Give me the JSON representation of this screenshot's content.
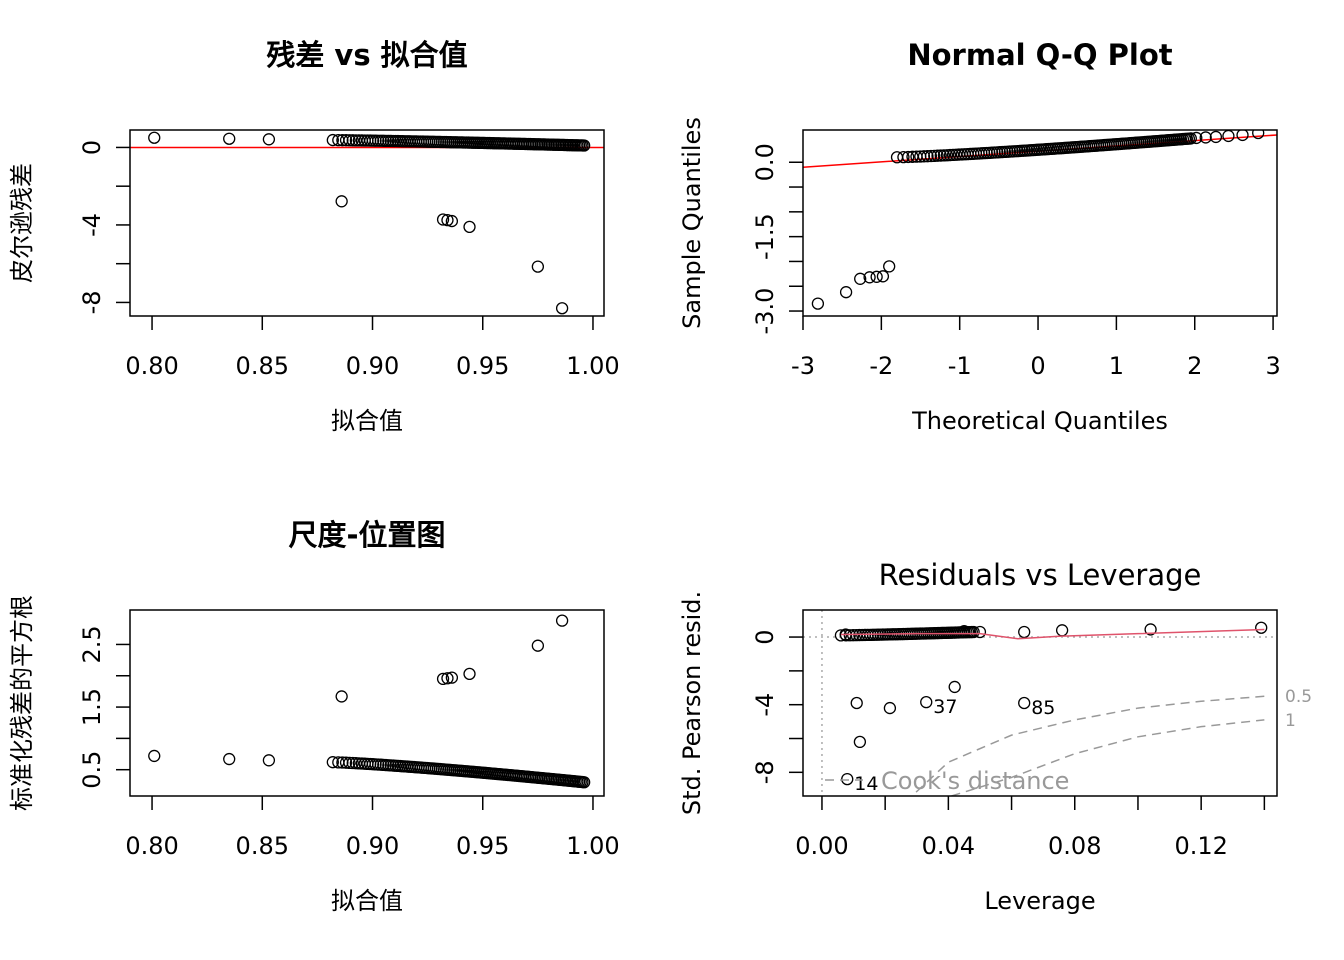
{
  "chart_data": [
    {
      "id": "p1",
      "type": "scatter",
      "title": "残差 vs 拟合值",
      "xlabel": "拟合值",
      "ylabel": "皮尔逊残差",
      "xlim": [
        0.79,
        1.005
      ],
      "ylim": [
        -8.7,
        0.9
      ],
      "xticks": [
        "0.80",
        "0.85",
        "0.90",
        "0.95",
        "1.00"
      ],
      "xtick_values": [
        0.8,
        0.85,
        0.9,
        0.95,
        1.0
      ],
      "yticks": [
        "0",
        "-4",
        "-8"
      ],
      "ytick_values": [
        0,
        -4,
        -8
      ],
      "yminor_values": [
        -2,
        -6
      ],
      "reference_line": {
        "y": 0,
        "color": "#ff0000"
      },
      "points": [
        [
          0.801,
          0.5
        ],
        [
          0.835,
          0.45
        ],
        [
          0.853,
          0.42
        ],
        [
          0.886,
          -2.78
        ],
        [
          0.932,
          -3.72
        ],
        [
          0.934,
          -3.75
        ],
        [
          0.936,
          -3.8
        ],
        [
          0.944,
          -4.1
        ],
        [
          0.975,
          -6.15
        ],
        [
          0.986,
          -8.3
        ]
      ],
      "dense_band": {
        "x_from": 0.882,
        "x_to": 0.996,
        "y_from": 0.38,
        "y_to": 0.1,
        "count": 120
      }
    },
    {
      "id": "p2",
      "type": "scatter",
      "title": "Normal Q-Q Plot",
      "xlabel": "Theoretical Quantiles",
      "ylabel": "Sample Quantiles",
      "xlim": [
        -3.0,
        3.05
      ],
      "ylim": [
        -3.1,
        0.65
      ],
      "xticks": [
        "-3",
        "-2",
        "-1",
        "0",
        "1",
        "2",
        "3"
      ],
      "xtick_values": [
        -3,
        -2,
        -1,
        0,
        1,
        2,
        3
      ],
      "yticks": [
        "0.0",
        "-1.5",
        "-3.0"
      ],
      "ytick_values": [
        0.0,
        -1.5,
        -3.0
      ],
      "yminor_values": [
        -0.5,
        -1.0,
        -2.0,
        -2.5
      ],
      "reference_line": {
        "from": [
          -3.0,
          -0.1
        ],
        "to": [
          3.05,
          0.55
        ],
        "color": "#ff0000"
      },
      "points": [
        [
          -2.81,
          -2.85
        ],
        [
          -2.45,
          -2.62
        ],
        [
          -2.27,
          -2.35
        ],
        [
          -2.15,
          -2.32
        ],
        [
          -2.06,
          -2.31
        ],
        [
          -1.98,
          -2.3
        ],
        [
          -1.9,
          -2.1
        ],
        [
          2.02,
          0.49
        ],
        [
          2.14,
          0.5
        ],
        [
          2.27,
          0.51
        ],
        [
          2.43,
          0.53
        ],
        [
          2.61,
          0.55
        ],
        [
          2.81,
          0.59
        ]
      ],
      "dense_band": {
        "x_from": -1.8,
        "x_to": 1.95,
        "y_from": 0.1,
        "y_to": 0.48,
        "count": 120
      }
    },
    {
      "id": "p3",
      "type": "scatter",
      "title": "尺度-位置图",
      "xlabel": "拟合值",
      "ylabel": "标准化残差的平方根",
      "xlim": [
        0.79,
        1.005
      ],
      "ylim": [
        0.08,
        3.05
      ],
      "xticks": [
        "0.80",
        "0.85",
        "0.90",
        "0.95",
        "1.00"
      ],
      "xtick_values": [
        0.8,
        0.85,
        0.9,
        0.95,
        1.0
      ],
      "yticks": [
        "0.5",
        "1.5",
        "2.5"
      ],
      "ytick_values": [
        0.5,
        1.5,
        2.5
      ],
      "yminor_values": [
        1.0,
        2.0
      ],
      "points": [
        [
          0.801,
          0.72
        ],
        [
          0.835,
          0.67
        ],
        [
          0.853,
          0.65
        ],
        [
          0.886,
          1.67
        ],
        [
          0.932,
          1.95
        ],
        [
          0.934,
          1.96
        ],
        [
          0.936,
          1.97
        ],
        [
          0.944,
          2.03
        ],
        [
          0.975,
          2.48
        ],
        [
          0.986,
          2.88
        ]
      ],
      "dense_band": {
        "x_from": 0.882,
        "x_to": 0.996,
        "y_from": 0.62,
        "y_to": 0.3,
        "count": 120
      }
    },
    {
      "id": "p4",
      "type": "scatter",
      "title": "Residuals vs Leverage",
      "xlabel": "Leverage",
      "ylabel": "Std. Pearson resid.",
      "xlim": [
        -0.006,
        0.144
      ],
      "ylim": [
        -9.4,
        1.6
      ],
      "xticks": [
        "0.00",
        "0.04",
        "0.08",
        "0.12"
      ],
      "xtick_values": [
        0.0,
        0.04,
        0.08,
        0.12
      ],
      "xminor_values": [
        0.02,
        0.06,
        0.1,
        0.14
      ],
      "yticks": [
        "0",
        "-4",
        "-8"
      ],
      "ytick_values": [
        0,
        -4,
        -8
      ],
      "yminor_values": [
        -2,
        -6
      ],
      "smooth_line": {
        "color": "#df536b",
        "points": [
          [
            0.006,
            0.15
          ],
          [
            0.03,
            0.2
          ],
          [
            0.05,
            0.2
          ],
          [
            0.062,
            -0.1
          ],
          [
            0.075,
            0.05
          ],
          [
            0.1,
            0.2
          ],
          [
            0.14,
            0.45
          ]
        ]
      },
      "cook_contours": [
        {
          "label": "0.5",
          "points": [
            [
              0.01,
              -19
            ],
            [
              0.025,
              -10
            ],
            [
              0.04,
              -7.4
            ],
            [
              0.06,
              -5.8
            ],
            [
              0.08,
              -4.9
            ],
            [
              0.1,
              -4.2
            ],
            [
              0.12,
              -3.8
            ],
            [
              0.14,
              -3.5
            ]
          ]
        },
        {
          "label": "1",
          "points": [
            [
              0.041,
              -9.4
            ],
            [
              0.06,
              -8.3
            ],
            [
              0.08,
              -6.9
            ],
            [
              0.1,
              -5.9
            ],
            [
              0.12,
              -5.3
            ],
            [
              0.14,
              -4.9
            ]
          ]
        }
      ],
      "cook_legend": "Cook's distance",
      "points": [
        [
          0.0075,
          0.15
        ],
        [
          0.045,
          0.35
        ],
        [
          0.05,
          0.3
        ],
        [
          0.064,
          0.3
        ],
        [
          0.076,
          0.4
        ],
        [
          0.104,
          0.45
        ],
        [
          0.139,
          0.55
        ],
        [
          0.011,
          -3.9
        ],
        [
          0.0215,
          -4.2
        ],
        [
          0.033,
          -3.85
        ],
        [
          0.042,
          -2.95
        ],
        [
          0.064,
          -3.9
        ],
        [
          0.012,
          -6.2
        ],
        [
          0.008,
          -8.4
        ]
      ],
      "point_labels": [
        {
          "text": "37",
          "x": 0.033,
          "y": -3.85
        },
        {
          "text": "85",
          "x": 0.064,
          "y": -3.9
        },
        {
          "text": "14",
          "x": 0.008,
          "y": -8.4
        }
      ],
      "dense_band": {
        "x_from": 0.006,
        "x_to": 0.048,
        "y_from": 0.1,
        "y_to": 0.3,
        "count": 60
      }
    }
  ]
}
